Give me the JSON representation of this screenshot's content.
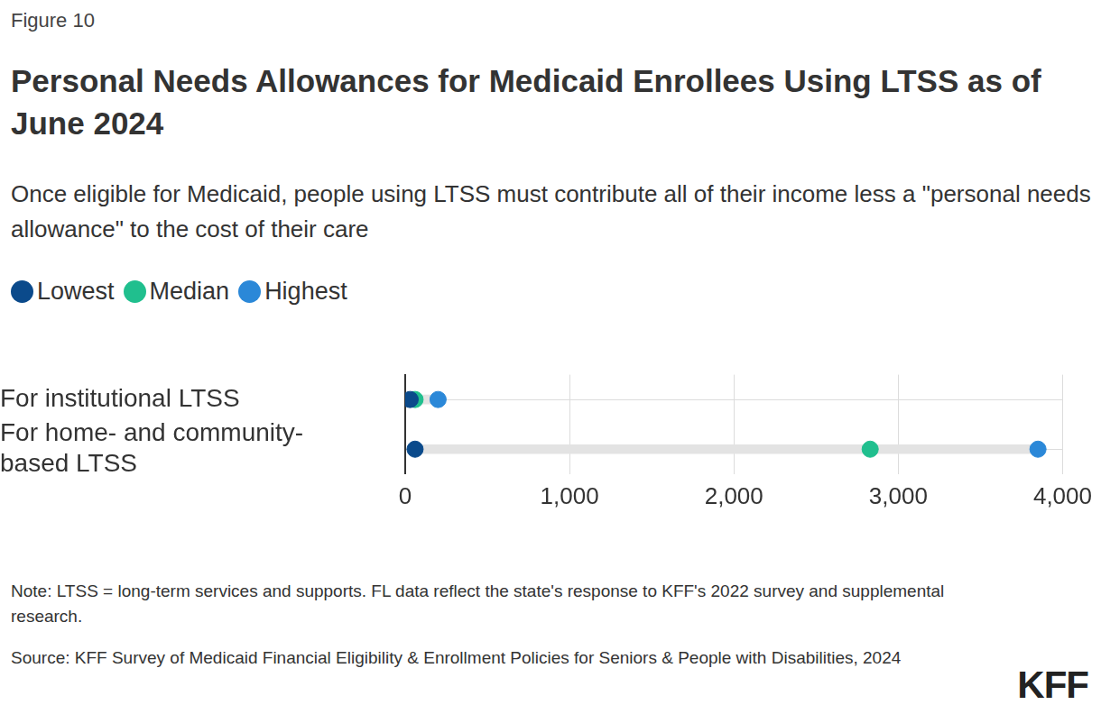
{
  "chart_data": {
    "type": "dot",
    "figure_label": "Figure 10",
    "title": "Personal Needs Allowances for Medicaid Enrollees Using LTSS as of June 2024",
    "subtitle": "Once eligible for Medicaid, people using LTSS must contribute all of their income less a \"personal needs allowance\" to the cost of their care",
    "orientation": "horizontal",
    "categories": [
      "For institutional LTSS",
      "For home- and community-based LTSS"
    ],
    "series": [
      {
        "name": "Lowest",
        "color": "#0b4a8b",
        "values": [
          30,
          60
        ]
      },
      {
        "name": "Median",
        "color": "#20bf8e",
        "values": [
          60,
          2829
        ]
      },
      {
        "name": "Highest",
        "color": "#2b88d8",
        "values": [
          200,
          3850
        ]
      }
    ],
    "xlim": [
      0,
      4000
    ],
    "xticks": [
      0,
      {
        "value": 1000,
        "label": "1,000"
      },
      {
        "value": 2000,
        "label": "2,000"
      },
      {
        "value": 3000,
        "label": "3,000"
      },
      {
        "value": 4000,
        "label": "4,000"
      }
    ],
    "grid": true,
    "legend": "top-left",
    "note": "Note: LTSS = long-term services and supports. FL data reflect the state's response to KFF's 2022 survey and supplemental research.",
    "source": "Source: KFF Survey of Medicaid Financial Eligibility & Enrollment Policies for Seniors & People with Disabilities, 2024",
    "logo": "KFF"
  }
}
